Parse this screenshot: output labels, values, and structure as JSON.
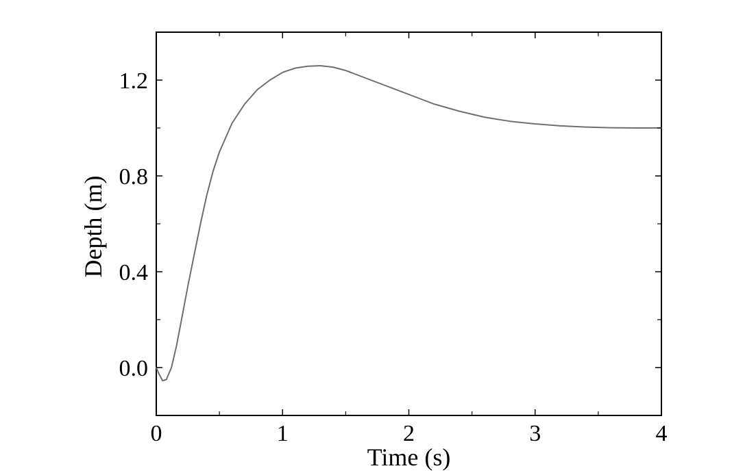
{
  "chart_data": {
    "type": "line",
    "title": "",
    "xlabel": "Time (s)",
    "ylabel": "Depth (m)",
    "xlim": [
      0,
      4
    ],
    "ylim": [
      -0.2,
      1.4
    ],
    "x_ticks": [
      0,
      1,
      2,
      3,
      4
    ],
    "x_tick_labels": [
      "0",
      "1",
      "2",
      "3",
      "4"
    ],
    "x_minor_ticks": [
      0.5,
      1.5,
      2.5,
      3.5
    ],
    "y_ticks": [
      0.0,
      0.4,
      0.8,
      1.2
    ],
    "y_tick_labels": [
      "0.0",
      "0.4",
      "0.8",
      "1.2"
    ],
    "y_minor_ticks": [
      -0.2,
      0.2,
      0.6,
      1.0,
      1.4
    ],
    "grid": false,
    "legend": "none",
    "series": [
      {
        "color": "#6e6e6e",
        "points": [
          [
            0.0,
            0.0
          ],
          [
            0.02,
            -0.025
          ],
          [
            0.05,
            -0.055
          ],
          [
            0.08,
            -0.05
          ],
          [
            0.12,
            -0.0
          ],
          [
            0.16,
            0.09
          ],
          [
            0.2,
            0.2
          ],
          [
            0.25,
            0.34
          ],
          [
            0.3,
            0.47
          ],
          [
            0.35,
            0.6
          ],
          [
            0.4,
            0.72
          ],
          [
            0.45,
            0.82
          ],
          [
            0.5,
            0.9
          ],
          [
            0.6,
            1.02
          ],
          [
            0.7,
            1.1
          ],
          [
            0.8,
            1.16
          ],
          [
            0.9,
            1.2
          ],
          [
            1.0,
            1.232
          ],
          [
            1.1,
            1.25
          ],
          [
            1.2,
            1.258
          ],
          [
            1.3,
            1.26
          ],
          [
            1.4,
            1.254
          ],
          [
            1.5,
            1.24
          ],
          [
            1.6,
            1.22
          ],
          [
            1.7,
            1.2
          ],
          [
            1.8,
            1.18
          ],
          [
            2.0,
            1.14
          ],
          [
            2.2,
            1.1
          ],
          [
            2.4,
            1.07
          ],
          [
            2.6,
            1.045
          ],
          [
            2.8,
            1.028
          ],
          [
            3.0,
            1.017
          ],
          [
            3.2,
            1.009
          ],
          [
            3.4,
            1.004
          ],
          [
            3.6,
            1.001
          ],
          [
            3.8,
            1.0
          ],
          [
            4.0,
            1.0
          ]
        ]
      }
    ]
  }
}
